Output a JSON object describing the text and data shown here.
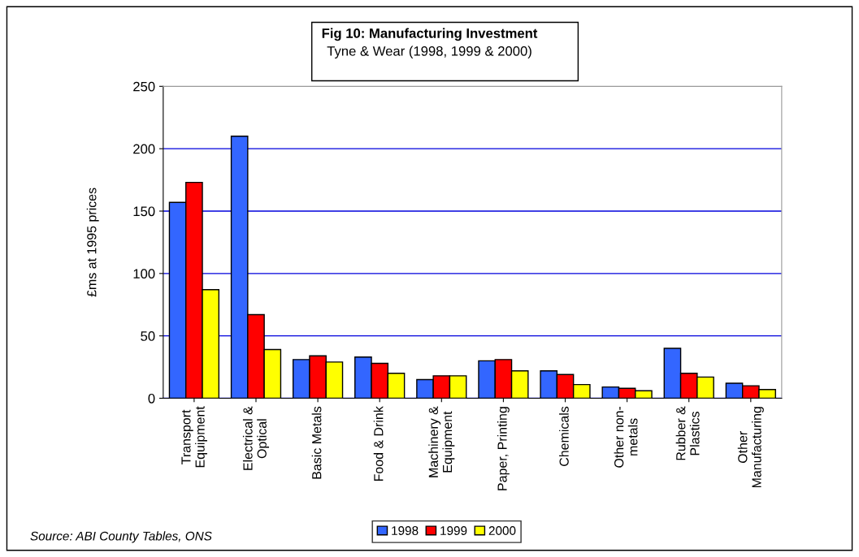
{
  "chart_data": {
    "type": "bar",
    "title": "Fig 10: Manufacturing Investment",
    "subtitle": "Tyne & Wear (1998, 1999 & 2000)",
    "ylabel": "£ms at 1995 prices",
    "categories": [
      "Transport\nEquipment",
      "Electrical &\nOptical",
      "Basic Metals",
      "Food & Drink",
      "Machinery &\nEquipment",
      "Paper, Printing",
      "Chemicals",
      "Other non-\nmetals",
      "Rubber &\nPlastics",
      "Other\nManufacturing"
    ],
    "series": [
      {
        "name": "1998",
        "color": "#3366ff",
        "values": [
          157,
          210,
          31,
          33,
          15,
          30,
          22,
          9,
          40,
          12
        ]
      },
      {
        "name": "1999",
        "color": "#ff0000",
        "values": [
          173,
          67,
          34,
          28,
          18,
          31,
          19,
          8,
          20,
          10
        ]
      },
      {
        "name": "2000",
        "color": "#ffff00",
        "values": [
          87,
          39,
          29,
          20,
          18,
          22,
          11,
          6,
          17,
          7
        ]
      }
    ],
    "ylim": [
      0,
      250
    ],
    "yticks": [
      0,
      50,
      100,
      150,
      200,
      250
    ],
    "grid": "y",
    "legend": "bottom",
    "annotations": [
      "Source: ABI County Tables, ONS"
    ]
  }
}
